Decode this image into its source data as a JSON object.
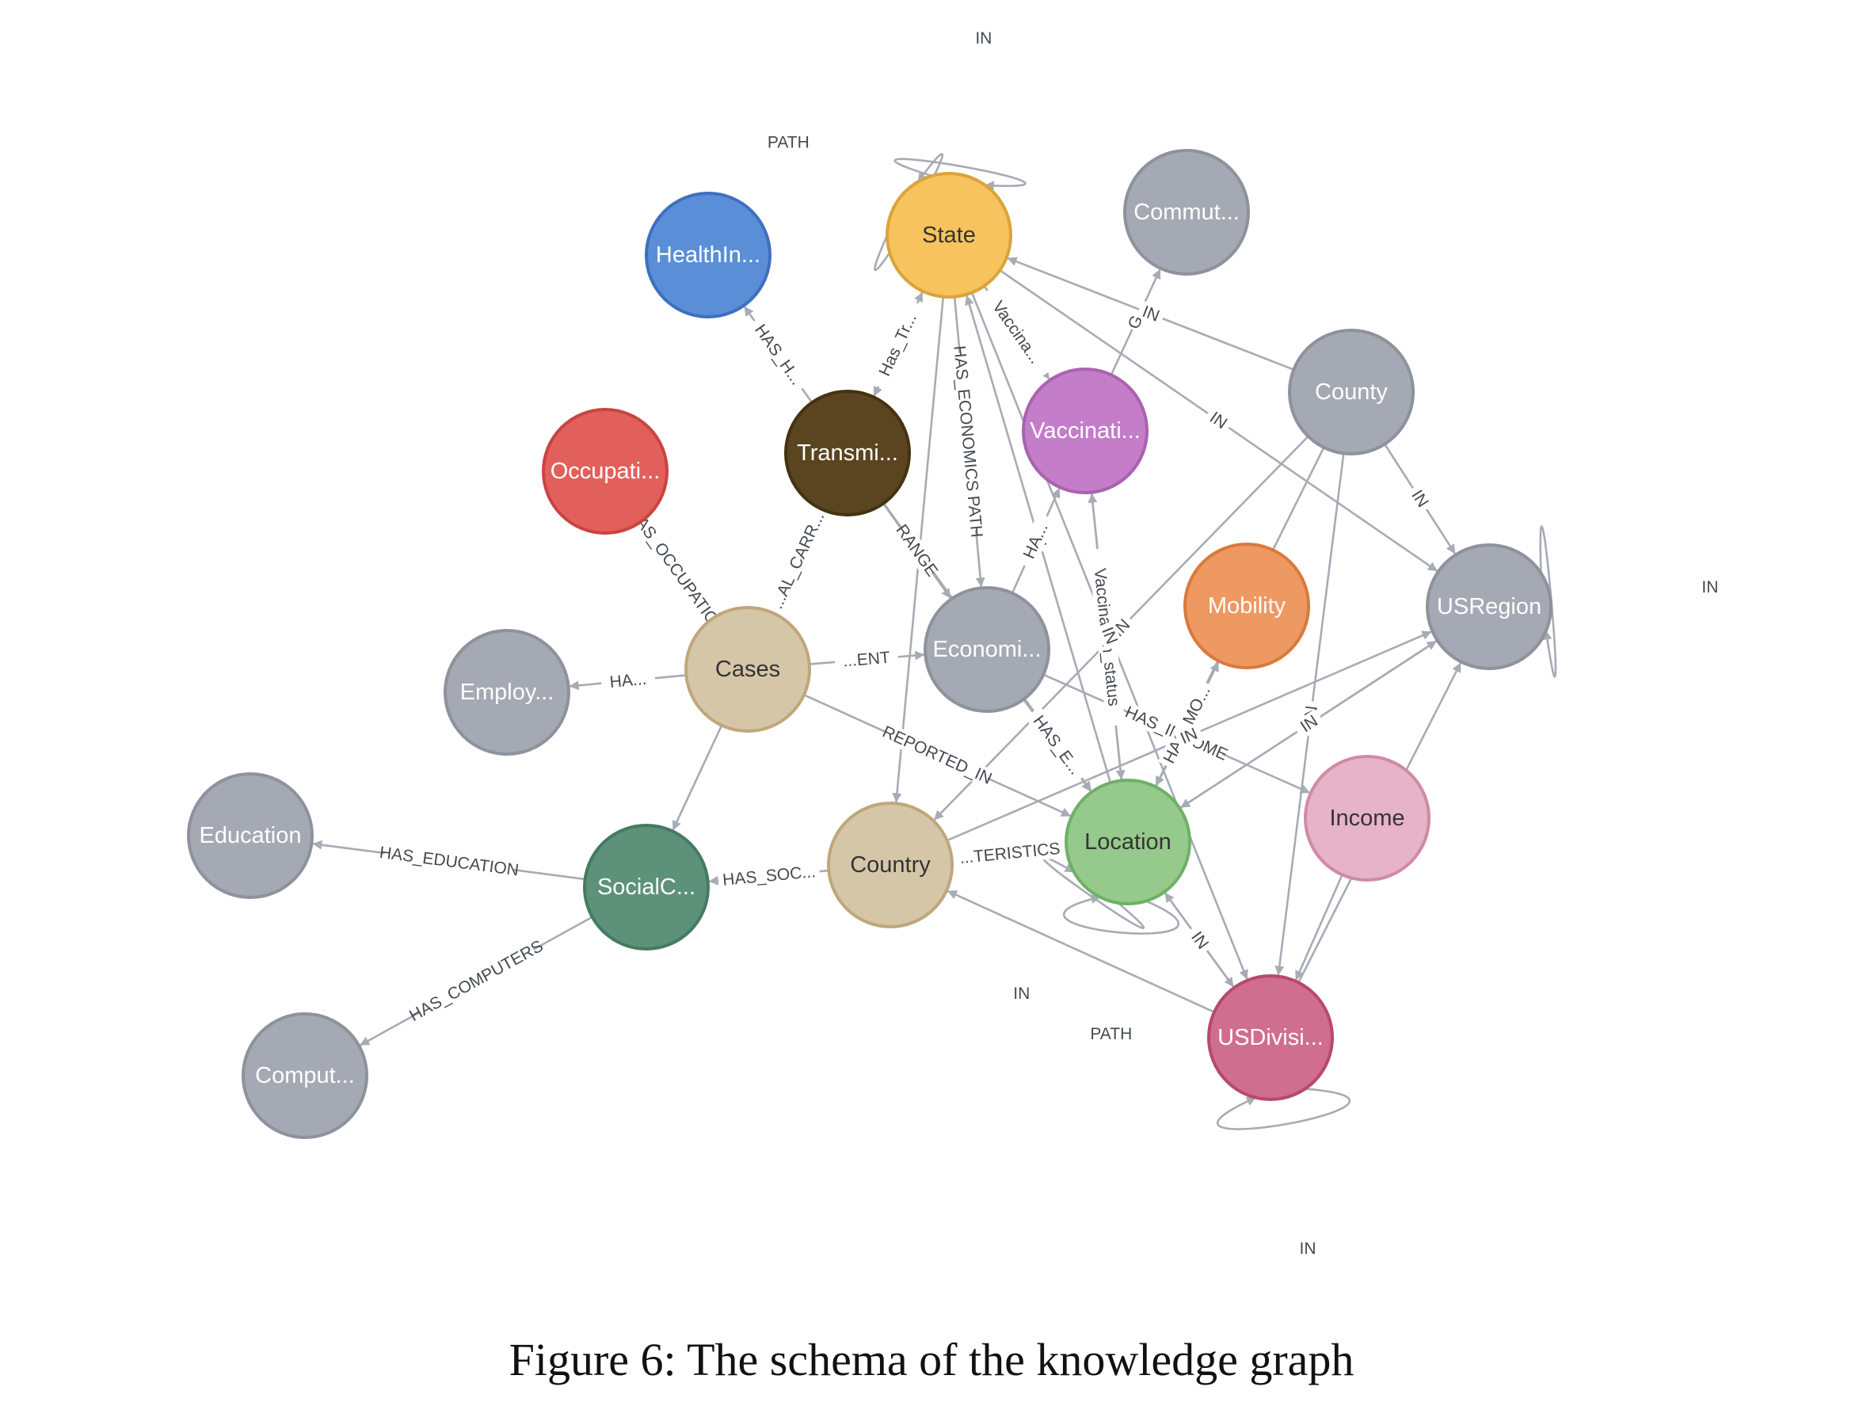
{
  "caption": "Figure 6: The schema of the knowledge graph",
  "nodes": [
    {
      "id": "state",
      "label": "State",
      "fill": "#f7c35e",
      "stroke": "#d9a43a",
      "text": "#333333"
    },
    {
      "id": "healthin",
      "label": "HealthIn...",
      "fill": "#5a8fd8",
      "stroke": "#3f6fbf",
      "text": "#ffffff"
    },
    {
      "id": "commut",
      "label": "Commut...",
      "fill": "#a5a9b3",
      "stroke": "#8e929c",
      "text": "#ffffff"
    },
    {
      "id": "county",
      "label": "County",
      "fill": "#a5a9b3",
      "stroke": "#8e929c",
      "text": "#ffffff"
    },
    {
      "id": "transmi",
      "label": "Transmi...",
      "fill": "#5a4520",
      "stroke": "#44330f",
      "text": "#ffffff"
    },
    {
      "id": "vaccinati",
      "label": "Vaccinati...",
      "fill": "#c37dc9",
      "stroke": "#a962b0",
      "text": "#ffffff"
    },
    {
      "id": "occupati",
      "label": "Occupati...",
      "fill": "#e2605c",
      "stroke": "#c94440",
      "text": "#ffffff"
    },
    {
      "id": "mobility",
      "label": "Mobility",
      "fill": "#ee9862",
      "stroke": "#d97a3d",
      "text": "#ffffff"
    },
    {
      "id": "usregion",
      "label": "USRegion",
      "fill": "#a5a9b3",
      "stroke": "#8e929c",
      "text": "#ffffff"
    },
    {
      "id": "cases",
      "label": "Cases",
      "fill": "#d6c6a8",
      "stroke": "#bfa77c",
      "text": "#333333"
    },
    {
      "id": "economi",
      "label": "Economi...",
      "fill": "#a5a9b3",
      "stroke": "#8e929c",
      "text": "#ffffff"
    },
    {
      "id": "employ",
      "label": "Employ...",
      "fill": "#a5a9b3",
      "stroke": "#8e929c",
      "text": "#ffffff"
    },
    {
      "id": "education",
      "label": "Education",
      "fill": "#a5a9b3",
      "stroke": "#8e929c",
      "text": "#ffffff"
    },
    {
      "id": "socialc",
      "label": "SocialC...",
      "fill": "#5e917a",
      "stroke": "#467a62",
      "text": "#ffffff"
    },
    {
      "id": "country",
      "label": "Country",
      "fill": "#d6c6a8",
      "stroke": "#bfa77c",
      "text": "#333333"
    },
    {
      "id": "location",
      "label": "Location",
      "fill": "#96c98c",
      "stroke": "#6fb066",
      "text": "#333333"
    },
    {
      "id": "income",
      "label": "Income",
      "fill": "#e6b3c8",
      "stroke": "#d08aa6",
      "text": "#333333"
    },
    {
      "id": "usdivisi",
      "label": "USDivisi...",
      "fill": "#cf6e8e",
      "stroke": "#b8486d",
      "text": "#ffffff"
    },
    {
      "id": "comput",
      "label": "Comput...",
      "fill": "#a5a9b3",
      "stroke": "#8e929c",
      "text": "#ffffff"
    }
  ],
  "edges": [
    {
      "from": "state",
      "to": "state",
      "label": "IN"
    },
    {
      "from": "state",
      "to": "state",
      "label": "PATH"
    },
    {
      "from": "transmi",
      "to": "healthin",
      "label": "HAS_H..."
    },
    {
      "from": "transmi",
      "to": "state",
      "label": "Has_Tr..."
    },
    {
      "from": "state",
      "to": "transmi",
      "label": ""
    },
    {
      "from": "state",
      "to": "economi",
      "label": "HAS_ECONOMICS PATH"
    },
    {
      "from": "state",
      "to": "vaccinati",
      "label": "Vaccina..."
    },
    {
      "from": "state",
      "to": "country",
      "label": ""
    },
    {
      "from": "county",
      "to": "state",
      "label": "IN"
    },
    {
      "from": "vaccinati",
      "to": "commut",
      "label": "G"
    },
    {
      "from": "location",
      "to": "state",
      "label": "IN"
    },
    {
      "from": "county",
      "to": "usregion",
      "label": "IN"
    },
    {
      "from": "state",
      "to": "usregion",
      "label": "IN"
    },
    {
      "from": "vaccinati",
      "to": "location",
      "label": "IN"
    },
    {
      "from": "location",
      "to": "vaccinati",
      "label": "Vaccination_status"
    },
    {
      "from": "economi",
      "to": "vaccinati",
      "label": "HA..."
    },
    {
      "from": "cases",
      "to": "occupati",
      "label": "HAS_OCCUPATION"
    },
    {
      "from": "transmi",
      "to": "cases",
      "label": "...AL_CARR..."
    },
    {
      "from": "transmi",
      "to": "economi",
      "label": "RANGE"
    },
    {
      "from": "transmi",
      "to": "location",
      "label": "PATH"
    },
    {
      "from": "cases",
      "to": "employ",
      "label": "HA..."
    },
    {
      "from": "cases",
      "to": "economi",
      "label": "...ENT"
    },
    {
      "from": "cases",
      "to": "location",
      "label": "REPORTED_IN"
    },
    {
      "from": "cases",
      "to": "socialc",
      "label": ""
    },
    {
      "from": "economi",
      "to": "location",
      "label": "HAS_E..."
    },
    {
      "from": "economi",
      "to": "income",
      "label": "HAS_INCOME"
    },
    {
      "from": "location",
      "to": "mobility",
      "label": "HAS_MO..."
    },
    {
      "from": "location",
      "to": "usregion",
      "label": "IN"
    },
    {
      "from": "country",
      "to": "usregion",
      "label": "IN"
    },
    {
      "from": "county",
      "to": "country",
      "label": "IN"
    },
    {
      "from": "county",
      "to": "location",
      "label": "IN"
    },
    {
      "from": "county",
      "to": "usdivisi",
      "label": "IN"
    },
    {
      "from": "state",
      "to": "usdivisi",
      "label": "IN"
    },
    {
      "from": "usregion",
      "to": "location",
      "label": "IN"
    },
    {
      "from": "usdivisi",
      "to": "usregion",
      "label": "IN"
    },
    {
      "from": "usregion",
      "to": "usregion",
      "label": "IN"
    },
    {
      "from": "country",
      "to": "socialc",
      "label": "HAS_SOC..."
    },
    {
      "from": "socialc",
      "to": "education",
      "label": "HAS_EDUCATION"
    },
    {
      "from": "socialc",
      "to": "comput",
      "label": "HAS_COMPUTERS"
    },
    {
      "from": "location",
      "to": "country",
      "label": "...TERISTICS"
    },
    {
      "from": "location",
      "to": "location",
      "label": "IN"
    },
    {
      "from": "location",
      "to": "location",
      "label": "PATH"
    },
    {
      "from": "location",
      "to": "usdivisi",
      "label": "IN"
    },
    {
      "from": "usdivisi",
      "to": "location",
      "label": "IN"
    },
    {
      "from": "usdivisi",
      "to": "country",
      "label": ""
    },
    {
      "from": "usdivisi",
      "to": "usdivisi",
      "label": "IN"
    },
    {
      "from": "income",
      "to": "usdivisi",
      "label": ""
    }
  ]
}
